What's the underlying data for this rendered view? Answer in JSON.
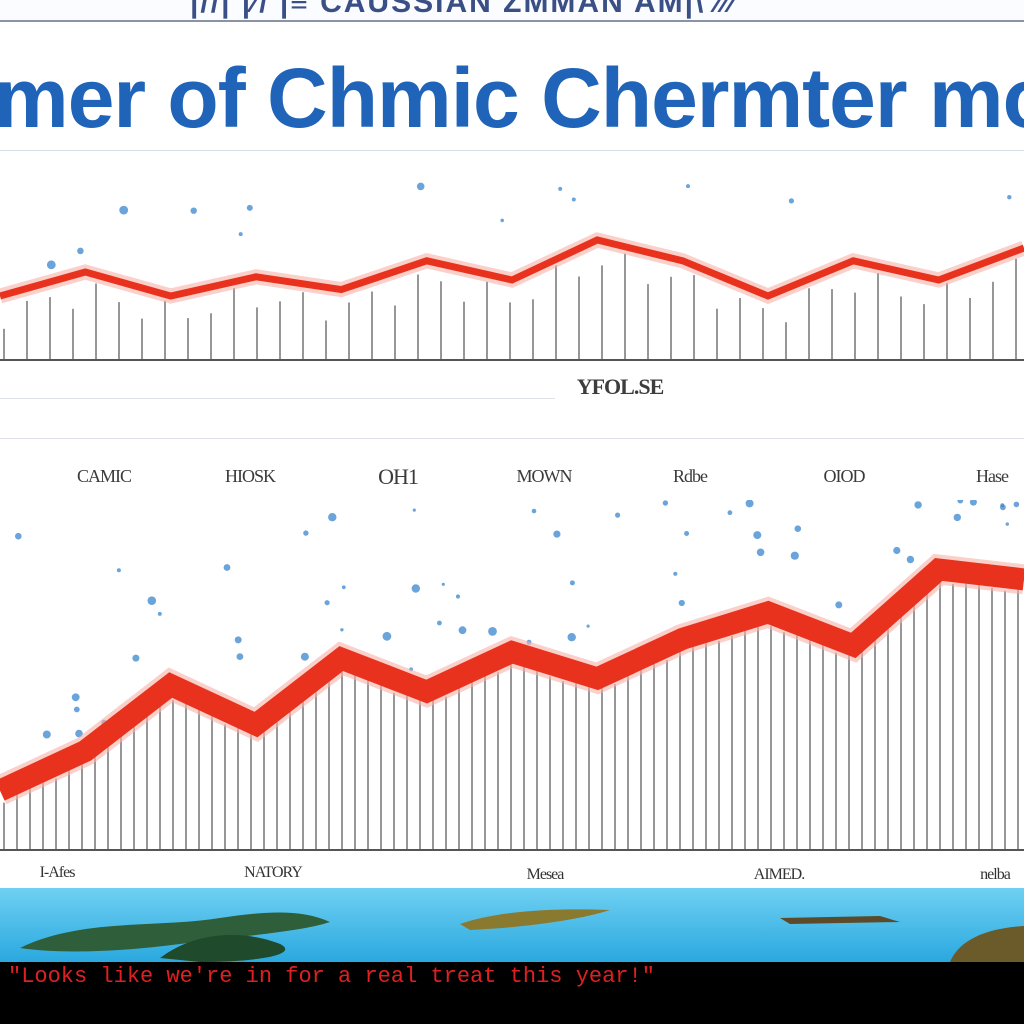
{
  "header": {
    "top_strip_text": "|//| |∕/ |≡ CAUSSIAN ZMMAN AM|\\ ∕∕∕",
    "title": "mer of Chmic Chermter mo"
  },
  "colors": {
    "title": "#1f64b8",
    "line": "#e8321e",
    "bars": "#7d7d7d",
    "dots": "#3a86cf",
    "water": "#2aa8df",
    "caption": "#e02020"
  },
  "chart_data": [
    {
      "type": "line",
      "x": [
        0,
        1,
        2,
        3,
        4,
        5,
        6,
        7,
        8,
        9,
        10,
        11,
        12
      ],
      "series": [
        {
          "values": [
            40,
            55,
            40,
            52,
            44,
            62,
            50,
            75,
            62,
            40,
            62,
            50,
            70
          ]
        }
      ],
      "xlabel": "YFOL.SE",
      "ylim": [
        0,
        100
      ],
      "grid": false,
      "categories": [
        "CAMIC",
        "HIOSK",
        "OH1",
        "MOWN",
        "Rdbe",
        "OIOD",
        "Hase"
      ]
    },
    {
      "type": "line",
      "x": [
        0,
        1,
        2,
        3,
        4,
        5,
        6,
        7,
        8,
        9,
        10,
        11,
        12
      ],
      "series": [
        {
          "values": [
            18,
            30,
            50,
            38,
            58,
            48,
            60,
            52,
            64,
            72,
            62,
            85,
            82
          ]
        }
      ],
      "ylim": [
        0,
        100
      ],
      "grid": false,
      "tick_labels": [
        "I-Afes",
        "NATORY",
        "Mesea",
        "AIMED.",
        "nelba"
      ]
    }
  ],
  "footer": {
    "caption": "\"Looks like we're in for a real treat this year!\""
  }
}
